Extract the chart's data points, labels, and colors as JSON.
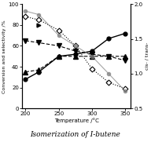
{
  "temperature": [
    200,
    220,
    250,
    275,
    300,
    325,
    350
  ],
  "conversion": [
    28,
    35,
    50,
    52,
    55,
    67,
    72
  ],
  "selectivity_trans": [
    65,
    63,
    60,
    55,
    52,
    50,
    46
  ],
  "selectivity_cis": [
    35,
    37,
    50,
    50,
    50,
    50,
    50
  ],
  "cis_trans_ratio": [
    1.9,
    1.85,
    1.55,
    1.4,
    1.25,
    1.0,
    0.75
  ],
  "open_diamond": [
    88,
    85,
    75,
    60,
    38,
    25,
    19
  ],
  "title": "Isomerization of I-butene",
  "xlabel": "Temperature /°C",
  "ylabel_left": "Conversion and selectivity /%",
  "ylabel_right": "cis- / trans-",
  "xlim": [
    195,
    358
  ],
  "ylim_left": [
    0,
    100
  ],
  "ylim_right": [
    0.5,
    2.0
  ],
  "xticks": [
    200,
    250,
    300,
    350
  ],
  "yticks_left": [
    0,
    20,
    40,
    60,
    80,
    100
  ],
  "yticks_right": [
    0.5,
    1.0,
    1.5,
    2.0
  ],
  "bg_color": "#f0f0f0"
}
